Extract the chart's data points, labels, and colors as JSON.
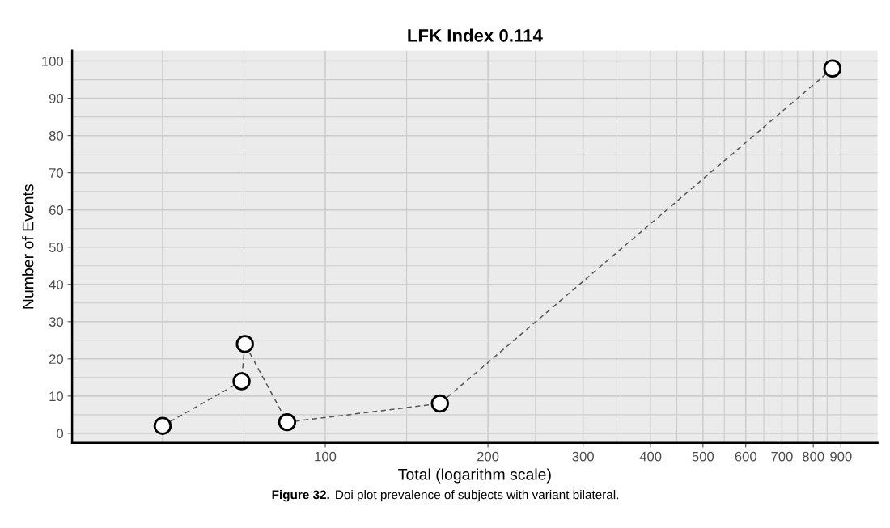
{
  "chart_data": {
    "type": "line",
    "title": "LFK Index 0.114",
    "xlabel": "Total (logarithm scale)",
    "ylabel": "Number of Events",
    "annotations": [
      "Figure 32.",
      "Doi plot prevalence of subjects with variant bilateral."
    ],
    "x": [
      50,
      70,
      71,
      85,
      163,
      868
    ],
    "series": [
      {
        "color": "#000000",
        "values": [
          2,
          14,
          24,
          3,
          8,
          98
        ]
      }
    ],
    "log": "x",
    "xlim": [
      34,
      1052
    ],
    "xticks": [
      {
        "value": 50,
        "label": null
      },
      100,
      200,
      300,
      400,
      500,
      600,
      700,
      800,
      900
    ],
    "ylim": [
      -2.6,
      102.8
    ],
    "yticks": [
      0,
      10,
      20,
      30,
      40,
      50,
      60,
      70,
      80,
      90,
      100
    ],
    "grid": true,
    "marker": "circle",
    "line_style": "dashed"
  }
}
